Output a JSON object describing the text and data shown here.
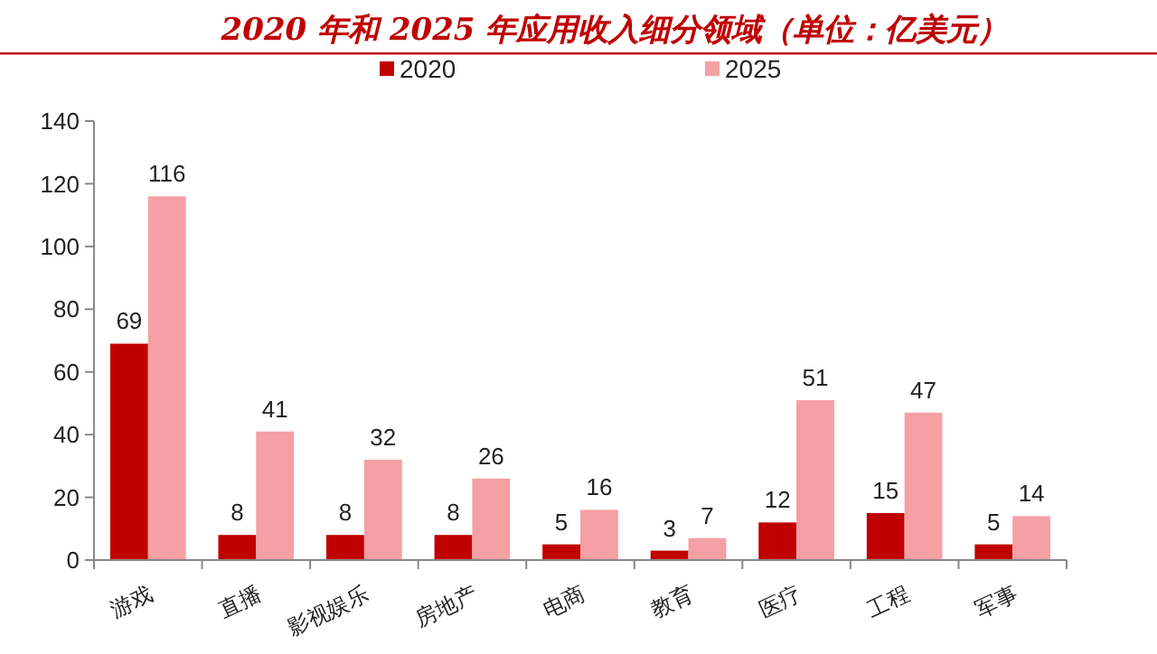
{
  "chart_data": {
    "type": "bar",
    "title": "2020 年和 2025 年应用收入细分领域（单位：亿美元）",
    "categories": [
      "游戏",
      "直播",
      "影视娱乐",
      "房地产",
      "电商",
      "教育",
      "医疗",
      "工程",
      "军事"
    ],
    "series": [
      {
        "name": "2020",
        "color": "#c00000",
        "values": [
          69,
          8,
          8,
          8,
          5,
          3,
          12,
          15,
          5
        ]
      },
      {
        "name": "2025",
        "color": "#f4a0a4",
        "values": [
          116,
          41,
          32,
          26,
          16,
          7,
          51,
          47,
          14
        ]
      }
    ],
    "ylim": [
      0,
      140
    ],
    "yticks": [
      0,
      20,
      40,
      60,
      80,
      100,
      120,
      140
    ],
    "grid": false,
    "legend": "top",
    "data_labels": true
  }
}
